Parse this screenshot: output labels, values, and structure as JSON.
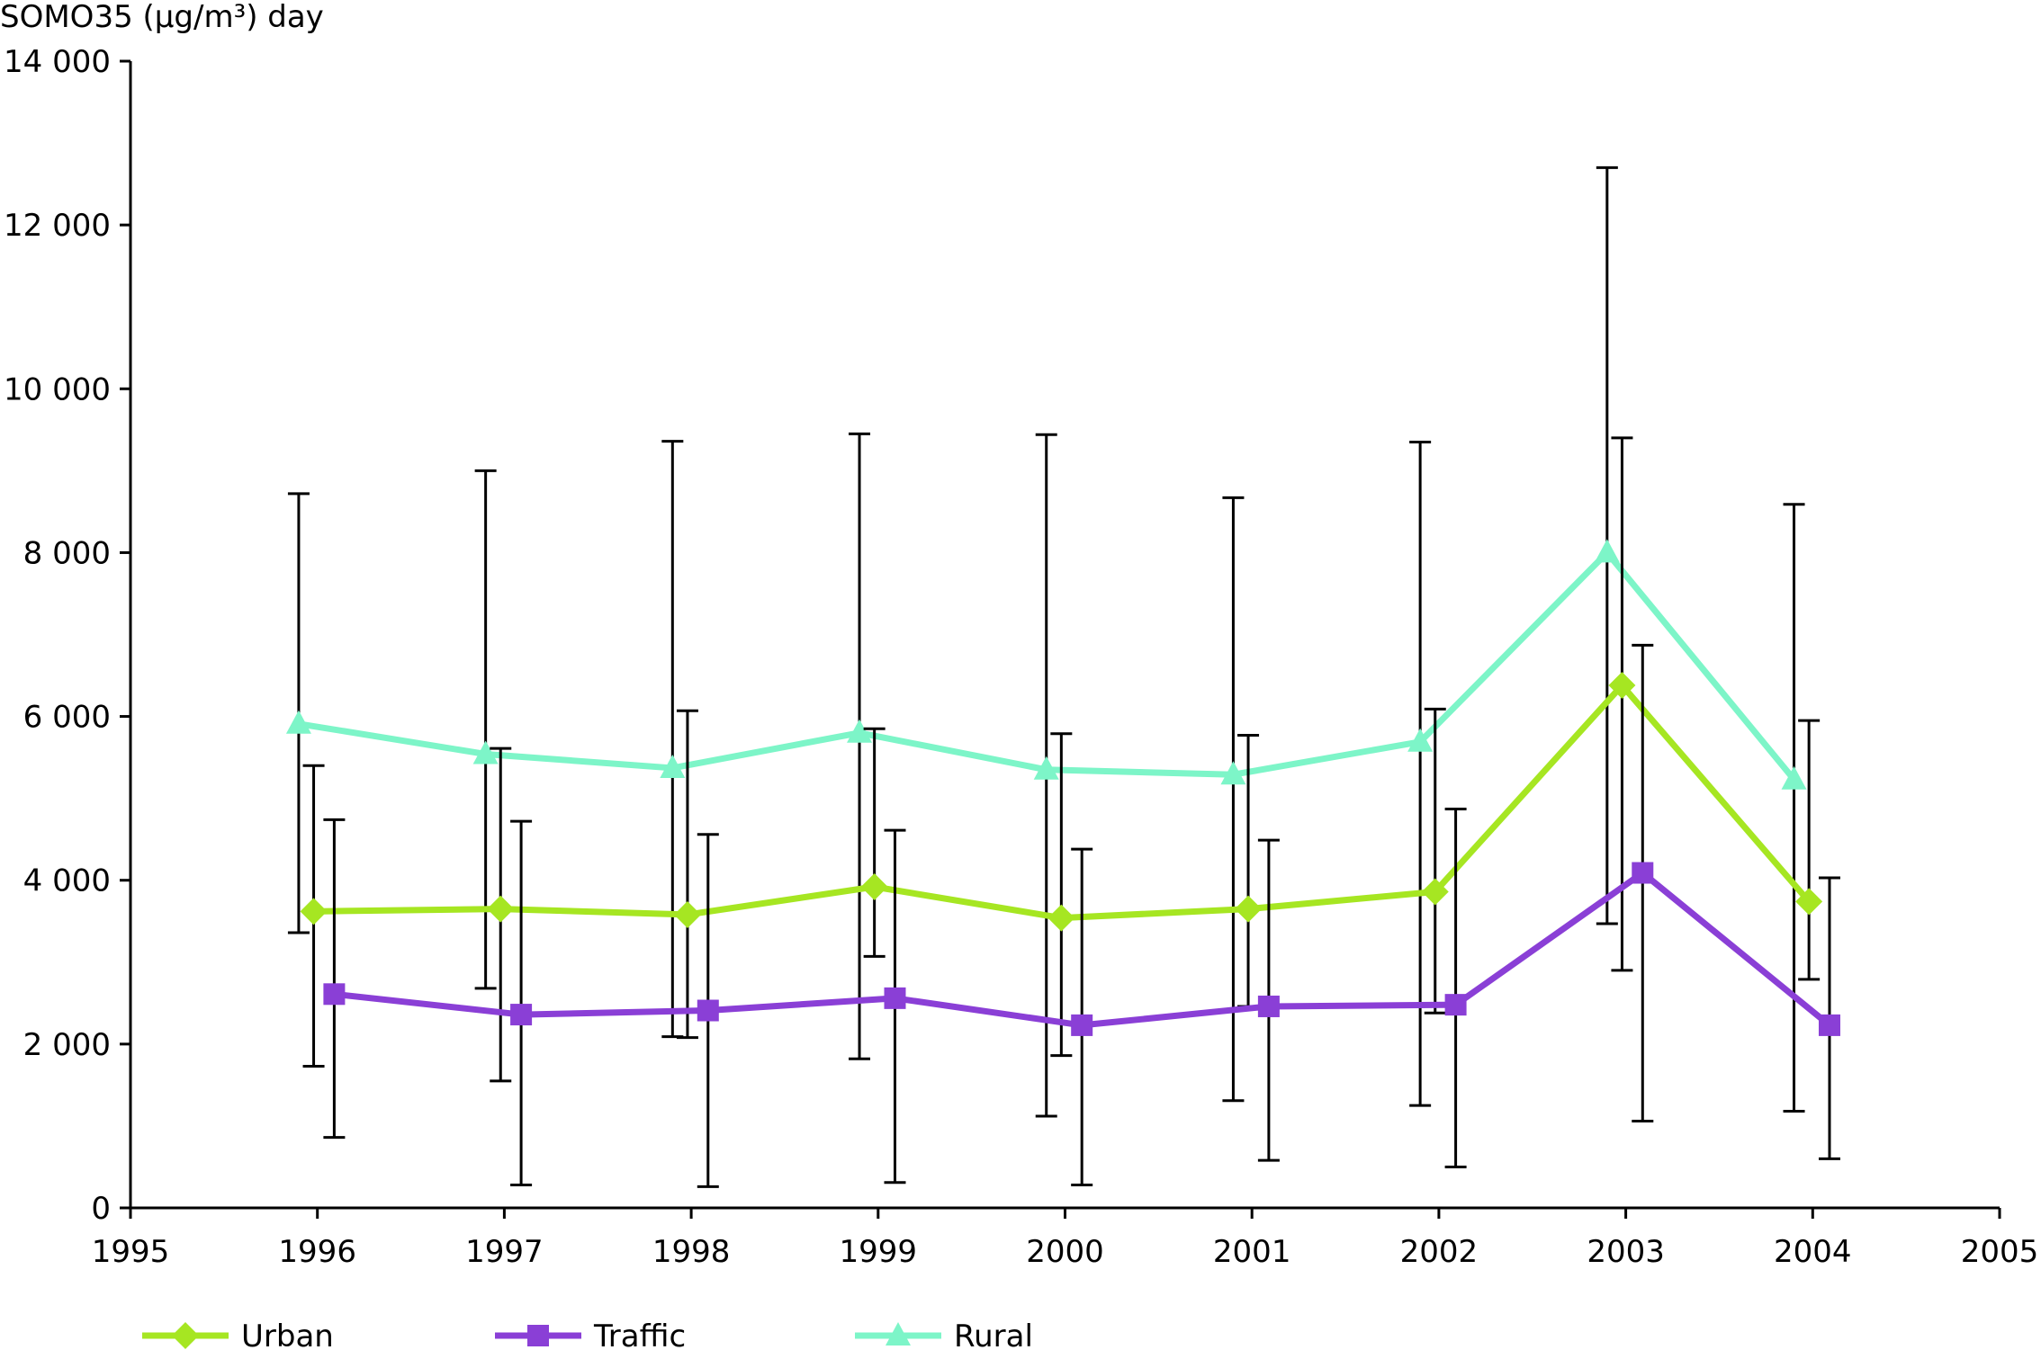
{
  "chart_data": {
    "type": "line",
    "title": "",
    "ylabel": "SOMO35 (µg/m³) day",
    "xlabel": "",
    "xlim": [
      1995,
      2005
    ],
    "ylim": [
      0,
      14000
    ],
    "x_ticks": [
      1995,
      1996,
      1997,
      1998,
      1999,
      2000,
      2001,
      2002,
      2003,
      2004,
      2005
    ],
    "x_tick_labels": [
      "1995",
      "1996",
      "1997",
      "1998",
      "1999",
      "2000",
      "2001",
      "2002",
      "2003",
      "2004",
      "2005"
    ],
    "y_ticks": [
      0,
      2000,
      4000,
      6000,
      8000,
      10000,
      12000,
      14000
    ],
    "y_tick_labels": [
      "0",
      "2 000",
      "4 000",
      "6 000",
      "8 000",
      "10 000",
      "12 000",
      "14 000"
    ],
    "grid": false,
    "legend_position": "bottom",
    "error_bars": true,
    "series": [
      {
        "name": "Urban",
        "color": "#a6e622",
        "marker": "diamond",
        "x": [
          1996,
          1997,
          1998,
          1999,
          2000,
          2001,
          2002,
          2003,
          2004
        ],
        "values": [
          3620,
          3650,
          3580,
          3920,
          3540,
          3650,
          3860,
          6380,
          3740
        ],
        "err_low": [
          1730,
          1550,
          2080,
          3070,
          1860,
          2460,
          2380,
          2900,
          2790
        ],
        "err_high": [
          5400,
          5610,
          6070,
          5850,
          5790,
          5770,
          6090,
          9400,
          5950
        ]
      },
      {
        "name": "Traffic",
        "color": "#8a3fd6",
        "marker": "square",
        "x": [
          1996,
          1997,
          1998,
          1999,
          2000,
          2001,
          2002,
          2003,
          2004
        ],
        "values": [
          2610,
          2360,
          2410,
          2560,
          2230,
          2460,
          2480,
          4090,
          2230
        ],
        "err_low": [
          860,
          280,
          260,
          310,
          280,
          580,
          500,
          1060,
          600
        ],
        "err_high": [
          4740,
          4720,
          4560,
          4610,
          4380,
          4490,
          4870,
          6870,
          4030
        ]
      },
      {
        "name": "Rural",
        "color": "#7df5c8",
        "marker": "triangle",
        "x": [
          1996,
          1997,
          1998,
          1999,
          2000,
          2001,
          2002,
          2003,
          2004
        ],
        "values": [
          5910,
          5540,
          5370,
          5800,
          5350,
          5290,
          5690,
          8000,
          5230
        ],
        "err_low": [
          3360,
          2680,
          2090,
          1820,
          1120,
          1310,
          1250,
          3470,
          1180
        ],
        "err_high": [
          8720,
          9000,
          9360,
          9450,
          9440,
          8670,
          9350,
          12700,
          8590
        ]
      }
    ]
  }
}
